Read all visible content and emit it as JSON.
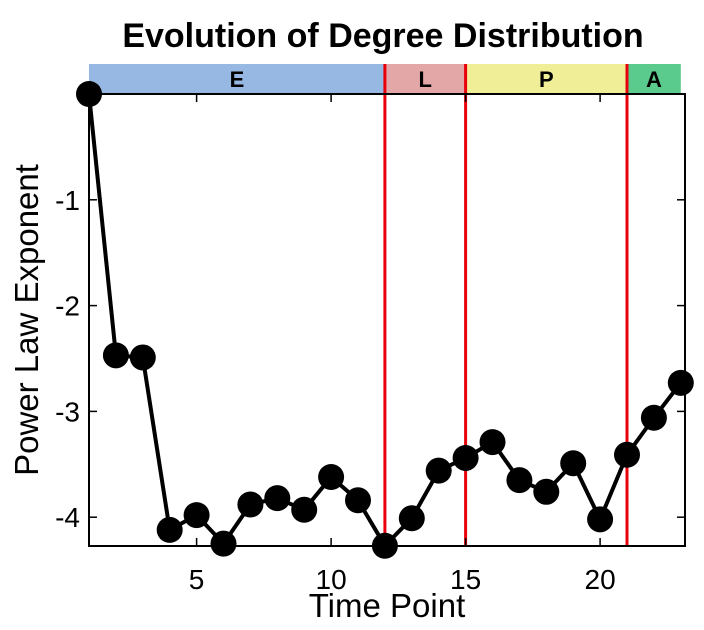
{
  "chart_data": {
    "type": "line",
    "title": "Evolution of Degree Distribution",
    "xlabel": "Time Point",
    "ylabel": "Power Law Exponent",
    "xlim": [
      1,
      23
    ],
    "ylim": [
      -4.3,
      0
    ],
    "xticks": [
      5,
      10,
      15,
      20
    ],
    "yticks": [
      -1,
      -2,
      -3,
      -4
    ],
    "grid": false,
    "x": [
      1,
      2,
      3,
      4,
      5,
      6,
      7,
      8,
      9,
      10,
      11,
      12,
      13,
      14,
      15,
      16,
      17,
      18,
      19,
      20,
      21,
      22,
      23
    ],
    "y": [
      0.0,
      -2.47,
      -2.49,
      -4.12,
      -3.98,
      -4.25,
      -3.88,
      -3.82,
      -3.93,
      -3.62,
      -3.84,
      -4.27,
      -4.01,
      -3.56,
      -3.44,
      -3.29,
      -3.65,
      -3.76,
      -3.49,
      -4.02,
      -3.41,
      -3.06,
      -2.73
    ],
    "phases": [
      {
        "label": "E",
        "start": 1,
        "end": 12,
        "color": "#97b8e3"
      },
      {
        "label": "L",
        "start": 12,
        "end": 15,
        "color": "#e3a7a7"
      },
      {
        "label": "P",
        "start": 15,
        "end": 21,
        "color": "#f0ef98"
      },
      {
        "label": "A",
        "start": 21,
        "end": 23,
        "color": "#5acb8c"
      }
    ],
    "boundaries": [
      12,
      15,
      21
    ],
    "boundary_color": "#e8000b",
    "marker_color": "#000000"
  }
}
